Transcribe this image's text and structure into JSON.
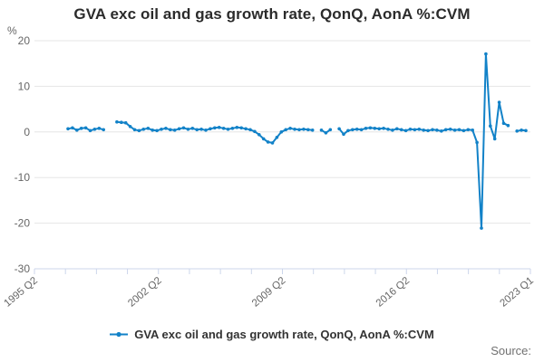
{
  "chart": {
    "title": "GVA exc oil and gas growth rate, QonQ, AonA %:CVM",
    "unit_label": "%",
    "legend_label": "GVA exc oil and gas growth rate, QonQ, AonA %:CVM",
    "source_label": "Source:",
    "accent_blue": "#1282c8",
    "grid_color": "#e6e6e6",
    "axis_color": "#ccd6eb",
    "tick_label_color": "#666666"
  },
  "chart_data": {
    "type": "line",
    "title": "GVA exc oil and gas growth rate, QonQ, AonA %:CVM",
    "ylabel": "%",
    "ylim": [
      -30,
      20
    ],
    "y_ticks": [
      20,
      10,
      0,
      -10,
      -20,
      -30
    ],
    "x_axis_start": "1995 Q2",
    "x_axis_end": "2023 Q1",
    "x_tick_labels": [
      "1995 Q2",
      "2002 Q2",
      "2009 Q2",
      "2016 Q2",
      "2023 Q1"
    ],
    "x_minor_tick_count": 17,
    "grid": "horizontal",
    "legend_position": "bottom",
    "series": [
      {
        "name": "GVA exc oil and gas growth rate, QonQ, AonA %:CVM",
        "frequency": "quarterly",
        "start_quarter": "1997 Q2",
        "end_quarter": "2023 Q1",
        "note_gaps": "null entries are quarters with no plotted value (line breaks)",
        "values": [
          0.7,
          0.9,
          0.4,
          0.8,
          0.9,
          0.3,
          0.6,
          0.8,
          0.5,
          null,
          null,
          2.2,
          2.1,
          2.0,
          1.2,
          0.5,
          0.3,
          0.6,
          0.8,
          0.4,
          0.3,
          0.6,
          0.8,
          0.5,
          0.4,
          0.7,
          0.9,
          0.6,
          0.8,
          0.5,
          0.6,
          0.4,
          0.7,
          0.9,
          1.0,
          0.8,
          0.6,
          0.8,
          1.0,
          0.9,
          0.7,
          0.5,
          0.1,
          -0.6,
          -1.5,
          -2.2,
          -2.4,
          -1.2,
          0.0,
          0.5,
          0.8,
          0.6,
          0.5,
          0.6,
          0.5,
          0.4,
          null,
          0.4,
          -0.2,
          0.5,
          null,
          0.7,
          -0.5,
          0.3,
          0.5,
          0.6,
          0.5,
          0.8,
          0.9,
          0.8,
          0.7,
          0.8,
          0.6,
          0.4,
          0.7,
          0.5,
          0.3,
          0.6,
          0.5,
          0.6,
          0.4,
          0.3,
          0.5,
          0.4,
          0.2,
          0.5,
          0.6,
          0.4,
          0.5,
          0.3,
          0.5,
          0.4,
          -2.3,
          -21.1,
          17.1,
          1.3,
          -1.5,
          6.5,
          1.9,
          1.4,
          null,
          0.2,
          0.4,
          0.3
        ]
      }
    ]
  }
}
